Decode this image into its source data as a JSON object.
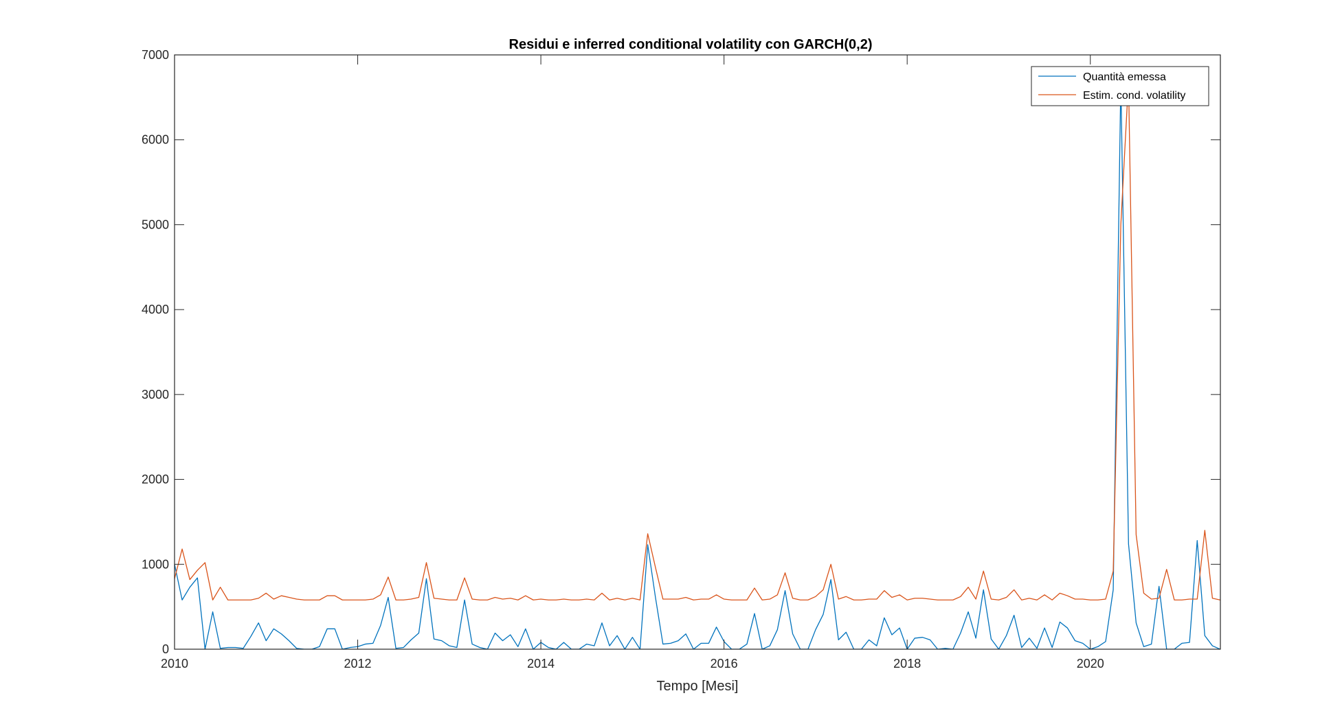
{
  "chart_data": {
    "type": "line",
    "title": "Residui e inferred conditional volatility con GARCH(0,2)",
    "xlabel": "Tempo [Mesi]",
    "ylabel": "",
    "xlim": [
      2010,
      2021.42
    ],
    "ylim": [
      0,
      7000
    ],
    "xticks": [
      2010,
      2012,
      2014,
      2016,
      2018,
      2020
    ],
    "xtick_labels": [
      "2010",
      "2012",
      "2014",
      "2016",
      "2018",
      "2020"
    ],
    "yticks": [
      0,
      1000,
      2000,
      3000,
      4000,
      5000,
      6000,
      7000
    ],
    "ytick_labels": [
      "0",
      "1000",
      "2000",
      "3000",
      "4000",
      "5000",
      "6000",
      "7000"
    ],
    "grid": false,
    "box": true,
    "legend_location": "top-right",
    "series": [
      {
        "name": "Quantità emessa",
        "color": "#0072BD",
        "points": [
          [
            2010.0,
            1000
          ],
          [
            2010.083,
            580
          ],
          [
            2010.167,
            730
          ],
          [
            2010.25,
            840
          ],
          [
            2010.333,
            0
          ],
          [
            2010.417,
            440
          ],
          [
            2010.5,
            10
          ],
          [
            2010.583,
            20
          ],
          [
            2010.667,
            20
          ],
          [
            2010.75,
            10
          ],
          [
            2010.833,
            150
          ],
          [
            2010.917,
            310
          ],
          [
            2011.0,
            100
          ],
          [
            2011.083,
            240
          ],
          [
            2011.167,
            180
          ],
          [
            2011.25,
            100
          ],
          [
            2011.333,
            10
          ],
          [
            2011.417,
            0
          ],
          [
            2011.5,
            0
          ],
          [
            2011.583,
            30
          ],
          [
            2011.667,
            240
          ],
          [
            2011.75,
            240
          ],
          [
            2011.833,
            0
          ],
          [
            2011.917,
            20
          ],
          [
            2012.0,
            30
          ],
          [
            2012.083,
            60
          ],
          [
            2012.167,
            70
          ],
          [
            2012.25,
            280
          ],
          [
            2012.333,
            610
          ],
          [
            2012.417,
            10
          ],
          [
            2012.5,
            20
          ],
          [
            2012.583,
            110
          ],
          [
            2012.667,
            190
          ],
          [
            2012.75,
            830
          ],
          [
            2012.833,
            120
          ],
          [
            2012.917,
            100
          ],
          [
            2013.0,
            40
          ],
          [
            2013.083,
            20
          ],
          [
            2013.167,
            580
          ],
          [
            2013.25,
            60
          ],
          [
            2013.333,
            20
          ],
          [
            2013.417,
            0
          ],
          [
            2013.5,
            190
          ],
          [
            2013.583,
            100
          ],
          [
            2013.667,
            170
          ],
          [
            2013.75,
            30
          ],
          [
            2013.833,
            240
          ],
          [
            2013.917,
            0
          ],
          [
            2014.0,
            80
          ],
          [
            2014.083,
            20
          ],
          [
            2014.167,
            0
          ],
          [
            2014.25,
            80
          ],
          [
            2014.333,
            0
          ],
          [
            2014.417,
            0
          ],
          [
            2014.5,
            60
          ],
          [
            2014.583,
            40
          ],
          [
            2014.667,
            310
          ],
          [
            2014.75,
            40
          ],
          [
            2014.833,
            160
          ],
          [
            2014.917,
            0
          ],
          [
            2015.0,
            140
          ],
          [
            2015.083,
            0
          ],
          [
            2015.167,
            1230
          ],
          [
            2015.25,
            620
          ],
          [
            2015.333,
            60
          ],
          [
            2015.417,
            70
          ],
          [
            2015.5,
            100
          ],
          [
            2015.583,
            180
          ],
          [
            2015.667,
            0
          ],
          [
            2015.75,
            70
          ],
          [
            2015.833,
            70
          ],
          [
            2015.917,
            260
          ],
          [
            2016.0,
            90
          ],
          [
            2016.083,
            0
          ],
          [
            2016.167,
            0
          ],
          [
            2016.25,
            60
          ],
          [
            2016.333,
            420
          ],
          [
            2016.417,
            0
          ],
          [
            2016.5,
            40
          ],
          [
            2016.583,
            230
          ],
          [
            2016.667,
            690
          ],
          [
            2016.75,
            180
          ],
          [
            2016.833,
            0
          ],
          [
            2016.917,
            0
          ],
          [
            2017.0,
            230
          ],
          [
            2017.083,
            410
          ],
          [
            2017.167,
            820
          ],
          [
            2017.25,
            110
          ],
          [
            2017.333,
            200
          ],
          [
            2017.417,
            0
          ],
          [
            2017.5,
            0
          ],
          [
            2017.583,
            110
          ],
          [
            2017.667,
            40
          ],
          [
            2017.75,
            370
          ],
          [
            2017.833,
            170
          ],
          [
            2017.917,
            250
          ],
          [
            2018.0,
            0
          ],
          [
            2018.083,
            130
          ],
          [
            2018.167,
            140
          ],
          [
            2018.25,
            110
          ],
          [
            2018.333,
            0
          ],
          [
            2018.417,
            10
          ],
          [
            2018.5,
            0
          ],
          [
            2018.583,
            190
          ],
          [
            2018.667,
            440
          ],
          [
            2018.75,
            130
          ],
          [
            2018.833,
            700
          ],
          [
            2018.917,
            120
          ],
          [
            2019.0,
            0
          ],
          [
            2019.083,
            160
          ],
          [
            2019.167,
            400
          ],
          [
            2019.25,
            20
          ],
          [
            2019.333,
            130
          ],
          [
            2019.417,
            10
          ],
          [
            2019.5,
            250
          ],
          [
            2019.583,
            20
          ],
          [
            2019.667,
            320
          ],
          [
            2019.75,
            250
          ],
          [
            2019.833,
            100
          ],
          [
            2019.917,
            70
          ],
          [
            2020.0,
            0
          ],
          [
            2020.083,
            30
          ],
          [
            2020.167,
            90
          ],
          [
            2020.25,
            700
          ],
          [
            2020.333,
            6700
          ],
          [
            2020.417,
            1240
          ],
          [
            2020.5,
            310
          ],
          [
            2020.583,
            30
          ],
          [
            2020.667,
            60
          ],
          [
            2020.75,
            740
          ],
          [
            2020.833,
            0
          ],
          [
            2020.917,
            0
          ],
          [
            2021.0,
            70
          ],
          [
            2021.083,
            80
          ],
          [
            2021.167,
            1280
          ],
          [
            2021.25,
            160
          ],
          [
            2021.333,
            40
          ],
          [
            2021.417,
            0
          ],
          [
            2021.5,
            0
          ],
          [
            2021.583,
            160
          ]
        ]
      },
      {
        "name": "Estim. cond. volatility",
        "color": "#D95319",
        "points": [
          [
            2010.0,
            830
          ],
          [
            2010.083,
            1180
          ],
          [
            2010.167,
            820
          ],
          [
            2010.25,
            930
          ],
          [
            2010.333,
            1020
          ],
          [
            2010.417,
            580
          ],
          [
            2010.5,
            730
          ],
          [
            2010.583,
            580
          ],
          [
            2010.667,
            580
          ],
          [
            2010.75,
            580
          ],
          [
            2010.833,
            580
          ],
          [
            2010.917,
            600
          ],
          [
            2011.0,
            660
          ],
          [
            2011.083,
            590
          ],
          [
            2011.167,
            630
          ],
          [
            2011.25,
            610
          ],
          [
            2011.333,
            590
          ],
          [
            2011.417,
            580
          ],
          [
            2011.5,
            580
          ],
          [
            2011.583,
            580
          ],
          [
            2011.667,
            630
          ],
          [
            2011.75,
            630
          ],
          [
            2011.833,
            580
          ],
          [
            2011.917,
            580
          ],
          [
            2012.0,
            580
          ],
          [
            2012.083,
            580
          ],
          [
            2012.167,
            590
          ],
          [
            2012.25,
            640
          ],
          [
            2012.333,
            850
          ],
          [
            2012.417,
            580
          ],
          [
            2012.5,
            580
          ],
          [
            2012.583,
            590
          ],
          [
            2012.667,
            610
          ],
          [
            2012.75,
            1020
          ],
          [
            2012.833,
            600
          ],
          [
            2012.917,
            590
          ],
          [
            2013.0,
            580
          ],
          [
            2013.083,
            580
          ],
          [
            2013.167,
            840
          ],
          [
            2013.25,
            590
          ],
          [
            2013.333,
            580
          ],
          [
            2013.417,
            580
          ],
          [
            2013.5,
            610
          ],
          [
            2013.583,
            590
          ],
          [
            2013.667,
            600
          ],
          [
            2013.75,
            580
          ],
          [
            2013.833,
            630
          ],
          [
            2013.917,
            580
          ],
          [
            2014.0,
            590
          ],
          [
            2014.083,
            580
          ],
          [
            2014.167,
            580
          ],
          [
            2014.25,
            590
          ],
          [
            2014.333,
            580
          ],
          [
            2014.417,
            580
          ],
          [
            2014.5,
            590
          ],
          [
            2014.583,
            580
          ],
          [
            2014.667,
            660
          ],
          [
            2014.75,
            580
          ],
          [
            2014.833,
            600
          ],
          [
            2014.917,
            580
          ],
          [
            2015.0,
            600
          ],
          [
            2015.083,
            580
          ],
          [
            2015.167,
            1360
          ],
          [
            2015.25,
            970
          ],
          [
            2015.333,
            590
          ],
          [
            2015.417,
            590
          ],
          [
            2015.5,
            590
          ],
          [
            2015.583,
            610
          ],
          [
            2015.667,
            580
          ],
          [
            2015.75,
            590
          ],
          [
            2015.833,
            590
          ],
          [
            2015.917,
            640
          ],
          [
            2016.0,
            590
          ],
          [
            2016.083,
            580
          ],
          [
            2016.167,
            580
          ],
          [
            2016.25,
            580
          ],
          [
            2016.333,
            720
          ],
          [
            2016.417,
            580
          ],
          [
            2016.5,
            590
          ],
          [
            2016.583,
            640
          ],
          [
            2016.667,
            900
          ],
          [
            2016.75,
            600
          ],
          [
            2016.833,
            580
          ],
          [
            2016.917,
            580
          ],
          [
            2017.0,
            620
          ],
          [
            2017.083,
            700
          ],
          [
            2017.167,
            1000
          ],
          [
            2017.25,
            590
          ],
          [
            2017.333,
            620
          ],
          [
            2017.417,
            580
          ],
          [
            2017.5,
            580
          ],
          [
            2017.583,
            590
          ],
          [
            2017.667,
            590
          ],
          [
            2017.75,
            690
          ],
          [
            2017.833,
            610
          ],
          [
            2017.917,
            640
          ],
          [
            2018.0,
            580
          ],
          [
            2018.083,
            600
          ],
          [
            2018.167,
            600
          ],
          [
            2018.25,
            590
          ],
          [
            2018.333,
            580
          ],
          [
            2018.417,
            580
          ],
          [
            2018.5,
            580
          ],
          [
            2018.583,
            620
          ],
          [
            2018.667,
            730
          ],
          [
            2018.75,
            590
          ],
          [
            2018.833,
            920
          ],
          [
            2018.917,
            590
          ],
          [
            2019.0,
            580
          ],
          [
            2019.083,
            610
          ],
          [
            2019.167,
            700
          ],
          [
            2019.25,
            580
          ],
          [
            2019.333,
            600
          ],
          [
            2019.417,
            580
          ],
          [
            2019.5,
            640
          ],
          [
            2019.583,
            580
          ],
          [
            2019.667,
            660
          ],
          [
            2019.75,
            630
          ],
          [
            2019.833,
            590
          ],
          [
            2019.917,
            590
          ],
          [
            2020.0,
            580
          ],
          [
            2020.083,
            580
          ],
          [
            2020.167,
            590
          ],
          [
            2020.25,
            920
          ],
          [
            2020.333,
            5000
          ],
          [
            2020.417,
            6700
          ],
          [
            2020.5,
            1350
          ],
          [
            2020.583,
            660
          ],
          [
            2020.667,
            590
          ],
          [
            2020.75,
            600
          ],
          [
            2020.833,
            940
          ],
          [
            2020.917,
            580
          ],
          [
            2021.0,
            580
          ],
          [
            2021.083,
            590
          ],
          [
            2021.167,
            590
          ],
          [
            2021.25,
            1400
          ],
          [
            2021.333,
            600
          ],
          [
            2021.417,
            580
          ],
          [
            2021.5,
            580
          ],
          [
            2021.583,
            580
          ]
        ]
      }
    ]
  }
}
